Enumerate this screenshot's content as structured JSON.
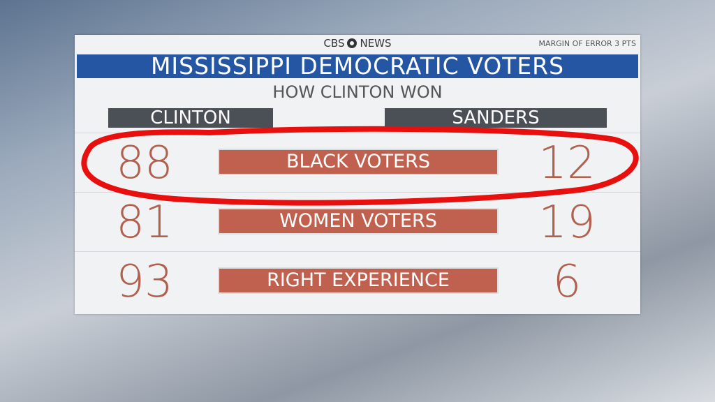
{
  "header": {
    "network_left": "CBS",
    "network_right": "NEWS",
    "margin_note": "MARGIN OF ERROR 3 PTS",
    "title": "MISSISSIPPI DEMOCRATIC VOTERS",
    "subtitle": "HOW CLINTON WON"
  },
  "columns": [
    "CLINTON",
    "SANDERS"
  ],
  "rows": [
    {
      "label": "BLACK VOTERS",
      "clinton": 88,
      "sanders": 12
    },
    {
      "label": "WOMEN VOTERS",
      "clinton": 81,
      "sanders": 19
    },
    {
      "label": "RIGHT EXPERIENCE",
      "clinton": 93,
      "sanders": 6
    }
  ]
}
